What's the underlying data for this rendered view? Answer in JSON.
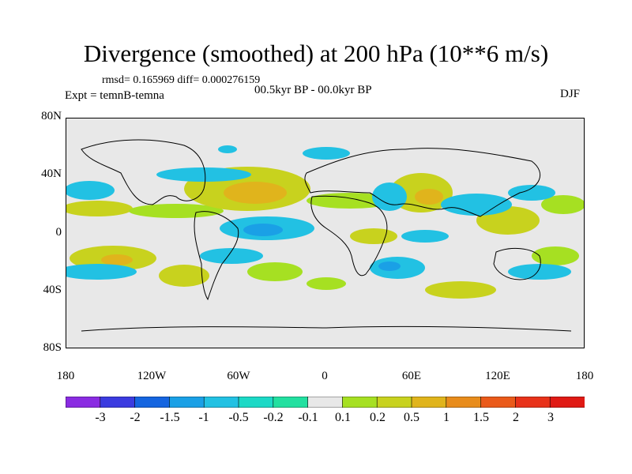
{
  "title": "Divergence (smoothed) at 200 hPa (10**6 m/s)",
  "stats_line": "rmsd= 0.165969  diff= 0.000276159",
  "period": "00.5kyr BP - 00.0kyr BP",
  "experiment": "Expt = temnB-temna",
  "season": "DJF",
  "y_axis": {
    "labels": [
      "80N",
      "40N",
      "0",
      "40S",
      "80S"
    ],
    "values": [
      80,
      40,
      0,
      -40,
      -80
    ]
  },
  "x_axis": {
    "labels": [
      "180",
      "120W",
      "60W",
      "0",
      "60E",
      "120E",
      "180"
    ],
    "values": [
      -180,
      -120,
      -60,
      0,
      60,
      120,
      180
    ]
  },
  "colorbar": {
    "labels": [
      "-3",
      "-2",
      "-1.5",
      "-1",
      "-0.5",
      "-0.2",
      "-0.1",
      "0.1",
      "0.2",
      "0.5",
      "1",
      "1.5",
      "2",
      "3"
    ],
    "colors": [
      "#8a2be2",
      "#3b3be0",
      "#1565e0",
      "#1aa0e6",
      "#22c1e3",
      "#1cd9c6",
      "#22e0a0",
      "#e8e8e8",
      "#a6e022",
      "#c8d21e",
      "#e0b41c",
      "#e88c1c",
      "#ea5a1a",
      "#e8321a",
      "#e01a14"
    ]
  },
  "palette": {
    "background": "#e8e8e8",
    "coast": "#000000"
  }
}
